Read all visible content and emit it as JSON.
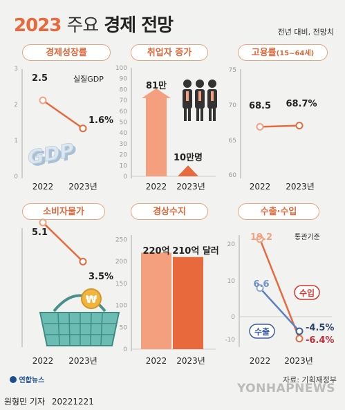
{
  "header": {
    "title_year": "2023",
    "title_mid": "주요",
    "title_end": "경제 전망",
    "note": "전년 대비, 전망치"
  },
  "colors": {
    "accent": "#e8693c",
    "light_accent": "#f4a07e",
    "import_line": "#e8693c",
    "export_line": "#6b8fc7",
    "import_label": "#d9342b",
    "export_label": "#3b5fa0"
  },
  "footer": {
    "logo": "연합뉴스",
    "source": "자료: 기획재정부",
    "credit": "원형민 기자",
    "date": "20221221",
    "watermark": "YONHAPNEWS"
  },
  "chart_data": [
    {
      "id": "gdp",
      "type": "line",
      "title": "경제성장률",
      "annotation": "실질GDP",
      "decor": "GDP",
      "categories": [
        "2022",
        "2023년"
      ],
      "series": [
        {
          "values": [
            2.5,
            1.6
          ]
        }
      ],
      "value_labels": [
        "2.5",
        "1.6%"
      ],
      "yticks": [
        "0",
        "1",
        "2",
        "3"
      ],
      "ylim": [
        0,
        3.5
      ]
    },
    {
      "id": "jobs",
      "type": "bar",
      "title": "취업자 증가",
      "categories": [
        "2022",
        "2023년"
      ],
      "values": [
        81,
        10
      ],
      "value_labels": [
        "81만",
        "10만명"
      ],
      "yticks": [
        "0",
        "10",
        "20",
        "30",
        "40",
        "50",
        "60",
        "70",
        "80",
        "90",
        "100"
      ],
      "ylim": [
        0,
        100
      ]
    },
    {
      "id": "employment",
      "type": "line",
      "title": "고용률",
      "title_sub": "(15~64세)",
      "categories": [
        "2022",
        "2023년"
      ],
      "series": [
        {
          "values": [
            68.5,
            68.7
          ]
        }
      ],
      "value_labels": [
        "68.5",
        "68.7%"
      ],
      "yticks": [
        "60",
        "65",
        "70",
        "75"
      ],
      "ylim": [
        60,
        78
      ]
    },
    {
      "id": "cpi",
      "type": "line",
      "title": "소비자물가",
      "categories": [
        "2022",
        "2023년"
      ],
      "series": [
        {
          "values": [
            5.1,
            3.5
          ]
        }
      ],
      "value_labels": [
        "5.1",
        "3.5%"
      ],
      "decor": "₩",
      "ylim": [
        0,
        6
      ]
    },
    {
      "id": "current",
      "type": "bar",
      "title": "경상수지",
      "categories": [
        "2022",
        "2023년"
      ],
      "values": [
        220,
        210
      ],
      "value_labels": [
        "220억",
        "210억 달러"
      ],
      "yticks": [
        "0",
        "50",
        "100",
        "150",
        "200",
        "250"
      ],
      "ylim": [
        0,
        260
      ]
    },
    {
      "id": "trade",
      "type": "line",
      "title": "수출·수입",
      "annotation": "통관기준",
      "categories": [
        "2022",
        "2023년"
      ],
      "series": [
        {
          "name": "수입",
          "values": [
            19.2,
            -6.4
          ]
        },
        {
          "name": "수출",
          "values": [
            6.6,
            -4.5
          ]
        }
      ],
      "value_labels_2022": [
        "19.2",
        "6.6"
      ],
      "value_labels_2023": [
        "-6.4%",
        "-4.5%"
      ],
      "yticks": [
        "-10",
        "0",
        "10",
        "20"
      ],
      "ylim": [
        -10,
        22
      ]
    }
  ]
}
